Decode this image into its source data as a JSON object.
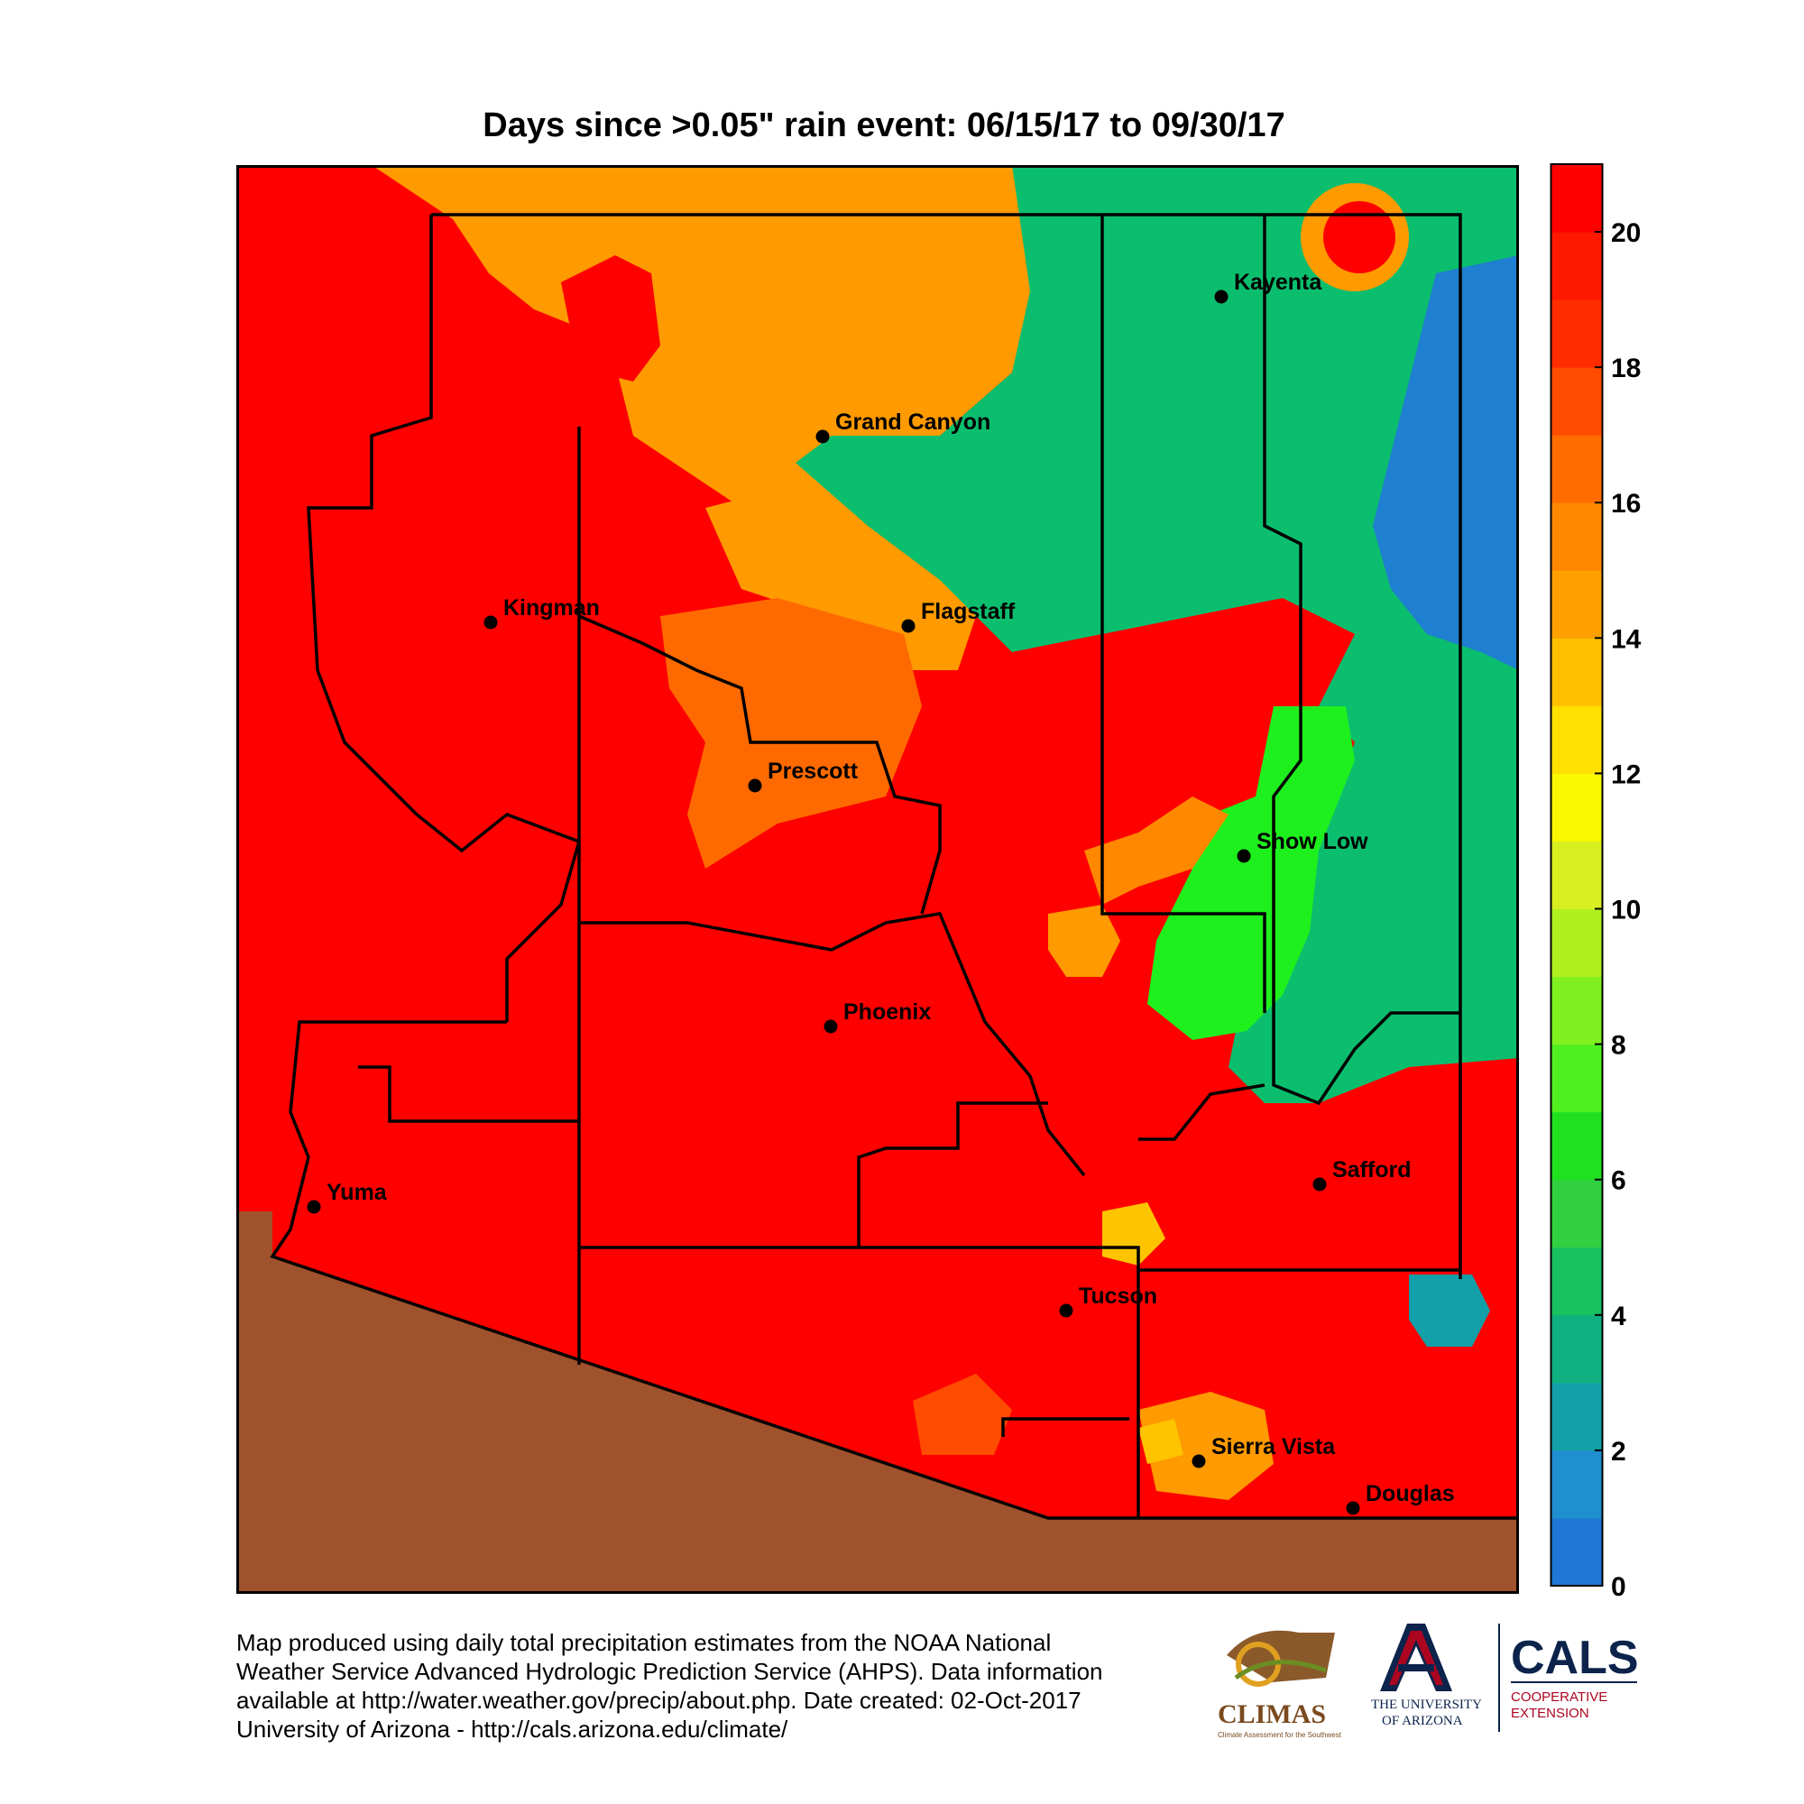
{
  "title": "Days since >0.05\" rain event: 06/15/17 to 09/30/17",
  "colorbar": {
    "min": 0,
    "max": 21,
    "tick_labels": [
      "0",
      "2",
      "4",
      "6",
      "8",
      "10",
      "12",
      "14",
      "16",
      "18",
      "20"
    ],
    "colors": [
      "#2077d6",
      "#1f8fd0",
      "#13a0a8",
      "#10b080",
      "#18c060",
      "#30d040",
      "#20e020",
      "#50f020",
      "#80f020",
      "#b0f020",
      "#d8f020",
      "#f8f800",
      "#ffe000",
      "#ffc000",
      "#ffa000",
      "#ff8800",
      "#ff6c00",
      "#ff4c00",
      "#ff2c00",
      "#ff1800",
      "#ff0000"
    ]
  },
  "map": {
    "region_colors": {
      "red": "#ff0000",
      "orange": "#ff9a00",
      "dark_orange": "#ff6a00",
      "teal": "#0bbe6e",
      "blue": "#1f7fd0",
      "green": "#1ef01e",
      "yellow": "#ffc400",
      "mexico": "#a0522d"
    },
    "cities": [
      {
        "name": "Kayenta"
      },
      {
        "name": "Grand Canyon"
      },
      {
        "name": "Kingman"
      },
      {
        "name": "Flagstaff"
      },
      {
        "name": "Prescott"
      },
      {
        "name": "Show Low"
      },
      {
        "name": "Phoenix"
      },
      {
        "name": "Yuma"
      },
      {
        "name": "Safford"
      },
      {
        "name": "Tucson"
      },
      {
        "name": "Sierra Vista"
      },
      {
        "name": "Douglas"
      }
    ]
  },
  "footer": {
    "line1": "Map produced using daily total precipitation estimates from the NOAA National",
    "line2": "Weather Service Advanced Hydrologic Prediction Service (AHPS). Data information",
    "line3": "available at http://water.weather.gov/precip/about.php. Date created: 02-Oct-2017",
    "line4": "University of Arizona - http://cals.arizona.edu/climate/"
  },
  "logos": {
    "climas": "CLIMAS",
    "climas_sub": "Climate Assessment for the Southwest",
    "ua_line1": "THE UNIVERSITY",
    "ua_line2": "OF ARIZONA",
    "cals": "CALS",
    "cals_sub1": "COOPERATIVE",
    "cals_sub2": "EXTENSION"
  }
}
